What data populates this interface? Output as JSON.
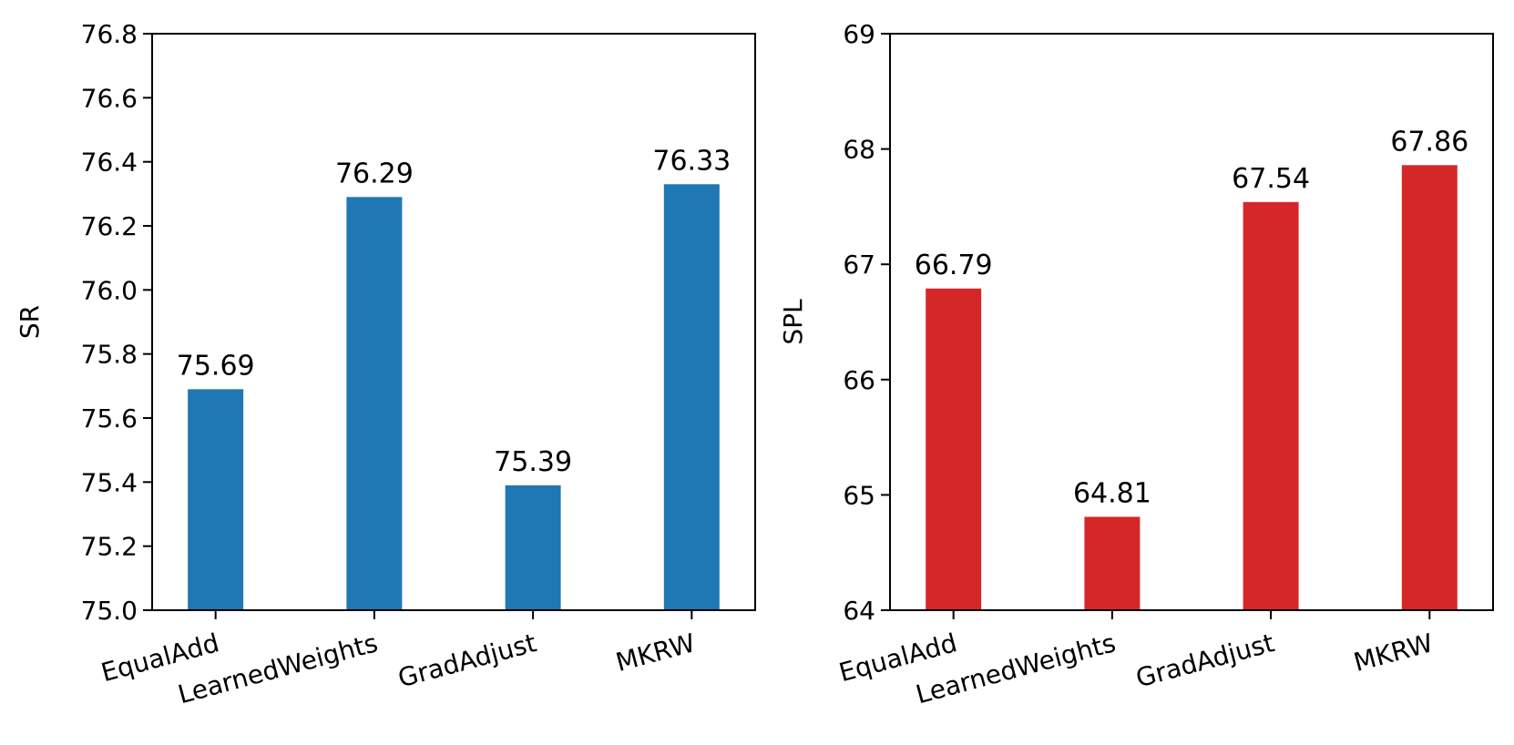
{
  "chart_data": [
    {
      "type": "bar",
      "categories": [
        "EqualAdd",
        "LearnedWeights",
        "GradAdjust",
        "MKRW"
      ],
      "series": [
        {
          "values": [
            75.69,
            76.29,
            75.39,
            76.33
          ],
          "color": "#1f77b4"
        }
      ],
      "data_labels": [
        "75.69",
        "76.29",
        "75.39",
        "76.33"
      ],
      "title": "",
      "xlabel": "",
      "ylabel": "SR",
      "ylim": [
        75.0,
        76.8
      ],
      "yticks": [
        75.0,
        75.2,
        75.4,
        75.6,
        75.8,
        76.0,
        76.2,
        76.4,
        76.6,
        76.8
      ],
      "ytick_labels": [
        "75.0",
        "75.2",
        "75.4",
        "75.6",
        "75.8",
        "76.0",
        "76.2",
        "76.4",
        "76.6",
        "76.8"
      ],
      "grid": false,
      "legend": "none"
    },
    {
      "type": "bar",
      "categories": [
        "EqualAdd",
        "LearnedWeights",
        "GradAdjust",
        "MKRW"
      ],
      "series": [
        {
          "values": [
            66.79,
            64.81,
            67.54,
            67.86
          ],
          "color": "#d62728"
        }
      ],
      "data_labels": [
        "66.79",
        "64.81",
        "67.54",
        "67.86"
      ],
      "title": "",
      "xlabel": "",
      "ylabel": "SPL",
      "ylim": [
        64,
        69
      ],
      "yticks": [
        64,
        65,
        66,
        67,
        68,
        69
      ],
      "ytick_labels": [
        "64",
        "65",
        "66",
        "67",
        "68",
        "69"
      ],
      "grid": false,
      "legend": "none"
    }
  ]
}
